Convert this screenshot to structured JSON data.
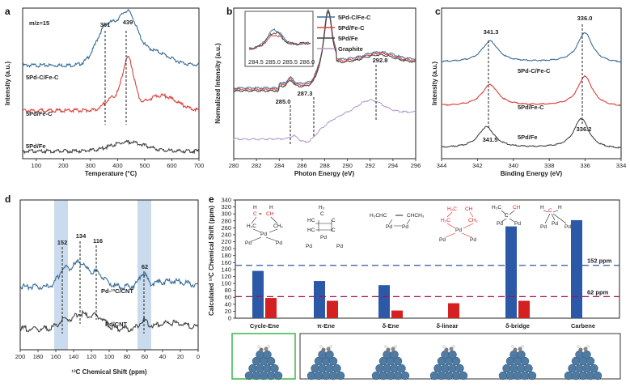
{
  "panels": {
    "a": "a",
    "b": "b",
    "c": "c",
    "d": "d",
    "e": "e"
  },
  "chart_data": [
    {
      "id": "a",
      "type": "line",
      "annotation": "m/z=15",
      "xlabel": "Temperature (°C)",
      "ylabel": "Intensity (a.u.)",
      "xlim": [
        50,
        700
      ],
      "xticks": [
        "100",
        "200",
        "300",
        "400",
        "500",
        "600",
        "700"
      ],
      "peaks": [
        "361",
        "439"
      ],
      "series": [
        {
          "name": "5Pd-C/Fe-C",
          "color": "#3a6e96",
          "baseline": 0.62,
          "peaks": [
            [
              361,
              0.26,
              55
            ],
            [
              439,
              0.28,
              45
            ],
            [
              520,
              0.1,
              90
            ]
          ]
        },
        {
          "name": "5Pd/Fe-C",
          "color": "#d9413d",
          "baseline": 0.32,
          "peaks": [
            [
              439,
              0.33,
              30
            ],
            [
              380,
              0.08,
              40
            ],
            [
              560,
              0.1,
              80
            ]
          ]
        },
        {
          "name": "5Pd/Fe",
          "color": "#444444",
          "baseline": 0.05,
          "peaks": [
            [
              440,
              0.06,
              90
            ]
          ]
        }
      ]
    },
    {
      "id": "b",
      "type": "line",
      "xlabel": "Photon Energy (eV)",
      "ylabel": "Normalized Intensity (a.u.)",
      "xlim": [
        280,
        296
      ],
      "xticks": [
        "280",
        "282",
        "284",
        "286",
        "288",
        "290",
        "292",
        "294",
        "296"
      ],
      "peaks": [
        "285.0",
        "287.3",
        "292.8"
      ],
      "legend": [
        "5Pd-C/Fe-C",
        "5Pd/Fe-C",
        "5Pd/Fe",
        "Graphite"
      ],
      "inset_xticks": [
        "284.5",
        "285.0",
        "285.5",
        "286.0"
      ],
      "series": [
        {
          "name": "5Pd-C/Fe-C",
          "color": "#3a6e96"
        },
        {
          "name": "5Pd/Fe-C",
          "color": "#d9413d"
        },
        {
          "name": "5Pd/Fe",
          "color": "#444444"
        },
        {
          "name": "Graphite",
          "color": "#b59ac9"
        }
      ]
    },
    {
      "id": "c",
      "type": "line",
      "xlabel": "Binding Energy (eV)",
      "ylabel": "Intensity (a.u.)",
      "xlim": [
        344,
        334
      ],
      "xticks": [
        "344",
        "342",
        "340",
        "338",
        "336",
        "334"
      ],
      "peaks_top": [
        "341.3",
        "336.0"
      ],
      "peaks_bottom": [
        "341.5",
        "336.2"
      ],
      "series": [
        {
          "name": "5Pd-C/Fe-C",
          "color": "#3a6e96",
          "offset": 0.62,
          "p1": 341.3,
          "p2": 336.0
        },
        {
          "name": "5Pd/Fe-C",
          "color": "#d9413d",
          "offset": 0.33,
          "p1": 341.3,
          "p2": 336.0
        },
        {
          "name": "5Pd/Fe",
          "color": "#444444",
          "offset": 0.05,
          "p1": 341.5,
          "p2": 336.2
        }
      ]
    },
    {
      "id": "d",
      "type": "line",
      "xlabel": "¹³C Chemical Shift (ppm)",
      "ylabel": "",
      "xlim": [
        200,
        0
      ],
      "xticks": [
        "200",
        "180",
        "160",
        "140",
        "120",
        "100",
        "80",
        "60",
        "40",
        "20",
        "0"
      ],
      "peaks": [
        "152",
        "134",
        "116",
        "62"
      ],
      "series": [
        {
          "name": "Pd-¹³C/CNT",
          "color": "#3a6e96"
        },
        {
          "name": "Pd/CNT",
          "color": "#444444"
        }
      ]
    },
    {
      "id": "e",
      "type": "bar",
      "ylabel": "Calculated ¹³C Chemical Shift (ppm)",
      "ylim": [
        0,
        340
      ],
      "yticks": [
        "0",
        "20",
        "40",
        "60",
        "80",
        "100",
        "120",
        "140",
        "160",
        "180",
        "200",
        "220",
        "240",
        "260",
        "280",
        "300",
        "320",
        "340"
      ],
      "categories": [
        "Cycle-Ene",
        "π-Ene",
        "δ-Ene",
        "δ-linear",
        "δ-bridge",
        "Carbene"
      ],
      "series": [
        {
          "name": "blue",
          "color": "#2b59a8",
          "values": [
            136,
            107,
            95,
            0,
            264,
            282
          ]
        },
        {
          "name": "red",
          "color": "#d42020",
          "values": [
            58,
            50,
            22,
            43,
            50,
            0
          ]
        }
      ],
      "ref_lines": [
        {
          "value": 152,
          "label": "152 ppm",
          "color": "#2b59a8"
        },
        {
          "value": 62,
          "label": "62 ppm",
          "color": "#a01050"
        }
      ]
    }
  ]
}
